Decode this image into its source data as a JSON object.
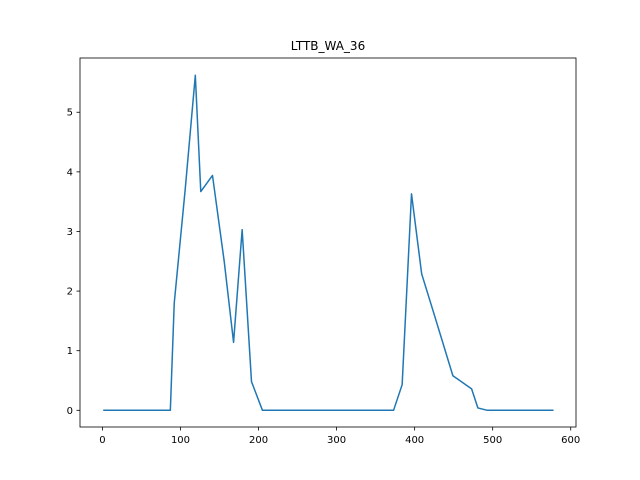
{
  "chart_data": {
    "type": "line",
    "title": "LTTB_WA_36",
    "xlabel": "",
    "ylabel": "",
    "xlim": [
      -28.75,
      606.75
    ],
    "ylim": [
      -0.28,
      5.91
    ],
    "grid": false,
    "x_ticks": [
      0,
      100,
      200,
      300,
      400,
      500,
      600
    ],
    "y_ticks": [
      0,
      1,
      2,
      3,
      4,
      5
    ],
    "series": [
      {
        "color": "#1f77b4",
        "x": [
          1,
          20,
          40,
          60,
          87,
          92,
          106,
          119,
          126,
          141,
          156,
          168,
          179,
          191,
          205,
          220,
          260,
          300,
          340,
          373,
          384,
          396,
          409,
          425,
          449,
          473,
          481,
          493,
          520,
          550,
          578
        ],
        "y": [
          0,
          0,
          0,
          0,
          0,
          1.8,
          3.7,
          5.62,
          3.67,
          3.94,
          2.5,
          1.14,
          3.03,
          0.48,
          0,
          0,
          0,
          0,
          0,
          0,
          0.43,
          3.63,
          2.29,
          1.61,
          0.58,
          0.36,
          0.04,
          0,
          0,
          0,
          0
        ]
      }
    ]
  }
}
